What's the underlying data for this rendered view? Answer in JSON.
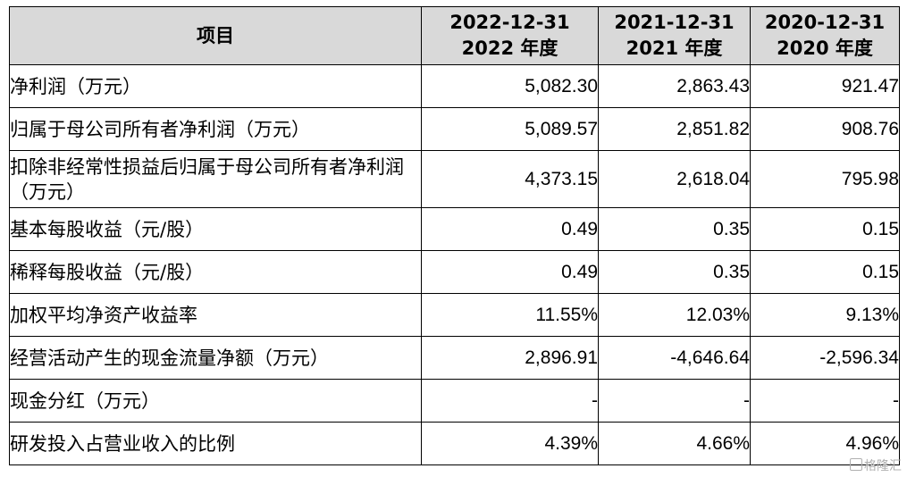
{
  "table": {
    "headers": [
      {
        "line1": "项目",
        "line2": ""
      },
      {
        "line1": "2022-12-31",
        "line2": "2022 年度"
      },
      {
        "line1": "2021-12-31",
        "line2": "2021 年度"
      },
      {
        "line1": "2020-12-31",
        "line2": "2020 年度"
      }
    ],
    "rows": [
      {
        "label": "净利润（万元）",
        "v2022": "5,082.30",
        "v2021": "2,863.43",
        "v2020": "921.47"
      },
      {
        "label": "归属于母公司所有者净利润（万元）",
        "v2022": "5,089.57",
        "v2021": "2,851.82",
        "v2020": "908.76"
      },
      {
        "label": "扣除非经常性损益后归属于母公司所有者净利润（万元）",
        "v2022": "4,373.15",
        "v2021": "2,618.04",
        "v2020": "795.98"
      },
      {
        "label": "基本每股收益（元/股）",
        "v2022": "0.49",
        "v2021": "0.35",
        "v2020": "0.15"
      },
      {
        "label": "稀释每股收益（元/股）",
        "v2022": "0.49",
        "v2021": "0.35",
        "v2020": "0.15"
      },
      {
        "label": "加权平均净资产收益率",
        "v2022": "11.55%",
        "v2021": "12.03%",
        "v2020": "9.13%"
      },
      {
        "label": "经营活动产生的现金流量净额（万元）",
        "v2022": "2,896.91",
        "v2021": "-4,646.64",
        "v2020": "-2,596.34"
      },
      {
        "label": "现金分红（万元）",
        "v2022": "-",
        "v2021": "-",
        "v2020": "-"
      },
      {
        "label": "研发投入占营业收入的比例",
        "v2022": "4.39%",
        "v2021": "4.66%",
        "v2020": "4.96%"
      }
    ]
  },
  "watermark": {
    "text": "格隆汇"
  }
}
